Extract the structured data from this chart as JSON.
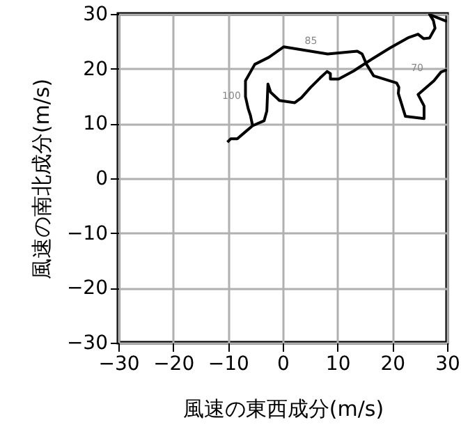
{
  "chart_data": {
    "type": "line",
    "xlabel": "風速の東西成分(m/s)",
    "ylabel": "風速の南北成分(m/s)",
    "xlim": [
      -30,
      30
    ],
    "ylim": [
      -30,
      30
    ],
    "xticks": [
      -30,
      -20,
      -10,
      0,
      10,
      20,
      30
    ],
    "yticks": [
      -30,
      -20,
      -10,
      0,
      10,
      20,
      30
    ],
    "grid": true,
    "marker": "none",
    "line_style": "solid",
    "series": [
      {
        "color": "#000000",
        "x": [
          -10.1,
          -9.5,
          -8.3,
          -6.8,
          -5.5,
          -5.9,
          -6.3,
          -6.8,
          -6.8,
          -5.1,
          -2.5,
          0.2,
          8.2,
          13.6,
          14.5,
          15.3,
          16.6,
          20.8,
          21.2,
          21.1,
          22.4,
          25.8,
          25.8,
          24.7,
          27.6,
          28.9,
          30.0,
          null,
          30.0,
          26.8,
          27.5,
          27.8,
          26.8,
          25.7,
          24.7,
          23.0,
          19.6,
          16.2,
          12.8,
          10.2,
          8.7,
          8.7,
          8.1,
          6.8,
          5.1,
          3.4,
          2.2,
          -0.6,
          -0.8,
          -2.2,
          -2.7,
          -2.9,
          -3.4,
          -5.5
        ],
        "values": [
          6.6,
          7.2,
          7.2,
          8.5,
          9.6,
          11.5,
          12.7,
          14.9,
          17.8,
          20.8,
          22.1,
          24.0,
          22.7,
          23.2,
          22.7,
          20.8,
          18.7,
          17.4,
          16.6,
          15.5,
          11.3,
          10.9,
          13.2,
          15.3,
          17.8,
          19.4,
          19.8,
          null,
          28.6,
          29.9,
          28.8,
          27.4,
          25.6,
          25.5,
          26.3,
          25.7,
          23.8,
          21.7,
          19.5,
          18.1,
          18.1,
          19.1,
          19.5,
          18.3,
          16.6,
          14.7,
          13.8,
          14.2,
          14.4,
          15.7,
          17.2,
          12.3,
          10.5,
          9.6
        ]
      }
    ],
    "annotations": [
      {
        "text": "100",
        "x": -6.3,
        "y": 12.7
      },
      {
        "text": "85",
        "x": 8.2,
        "y": 22.7
      },
      {
        "text": "70",
        "x": 27.6,
        "y": 17.8
      }
    ]
  }
}
